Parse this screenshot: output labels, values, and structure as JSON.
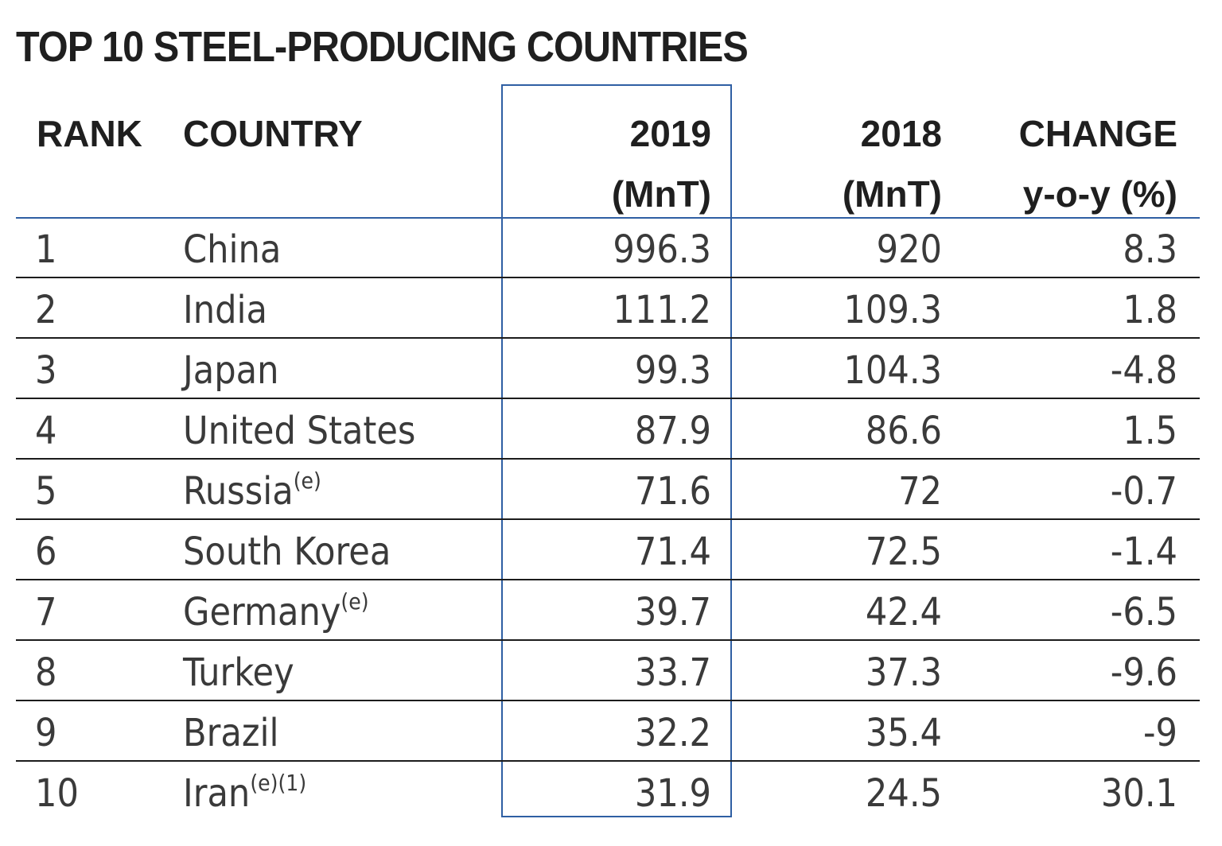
{
  "chart_data": {
    "type": "table",
    "title": "TOP 10 STEEL-PRODUCING COUNTRIES",
    "columns": [
      {
        "line1": "RANK",
        "line2": ""
      },
      {
        "line1": "COUNTRY",
        "line2": ""
      },
      {
        "line1": "2019",
        "line2": "(MnT)"
      },
      {
        "line1": "2018",
        "line2": "(MnT)"
      },
      {
        "line1": "CHANGE",
        "line2": "y-o-y (%)"
      }
    ],
    "rows": [
      {
        "rank": "1",
        "country": "China",
        "note": "",
        "y2019": "996.3",
        "y2018": "920",
        "change": "8.3"
      },
      {
        "rank": "2",
        "country": "India",
        "note": "",
        "y2019": "111.2",
        "y2018": "109.3",
        "change": "1.8"
      },
      {
        "rank": "3",
        "country": "Japan",
        "note": "",
        "y2019": "99.3",
        "y2018": "104.3",
        "change": "-4.8"
      },
      {
        "rank": "4",
        "country": "United States",
        "note": "",
        "y2019": "87.9",
        "y2018": "86.6",
        "change": "1.5"
      },
      {
        "rank": "5",
        "country": "Russia",
        "note": "(e)",
        "y2019": "71.6",
        "y2018": "72",
        "change": "-0.7"
      },
      {
        "rank": "6",
        "country": "South Korea",
        "note": "",
        "y2019": "71.4",
        "y2018": "72.5",
        "change": "-1.4"
      },
      {
        "rank": "7",
        "country": "Germany",
        "note": "(e)",
        "y2019": "39.7",
        "y2018": "42.4",
        "change": "-6.5"
      },
      {
        "rank": "8",
        "country": "Turkey",
        "note": "",
        "y2019": "33.7",
        "y2018": "37.3",
        "change": "-9.6"
      },
      {
        "rank": "9",
        "country": "Brazil",
        "note": "",
        "y2019": "32.2",
        "y2018": "35.4",
        "change": "-9"
      },
      {
        "rank": "10",
        "country": "Iran",
        "note": "(e)(1)",
        "y2019": "31.9",
        "y2018": "24.5",
        "change": "30.1"
      }
    ],
    "highlight_column": "2019",
    "colors": {
      "highlight_border": "#2f5fa3",
      "header_rule": "#2f5fa3",
      "row_rule": "#1c1c1c",
      "title_text": "#1f1f1f",
      "body_text": "#3a3a3a"
    }
  }
}
